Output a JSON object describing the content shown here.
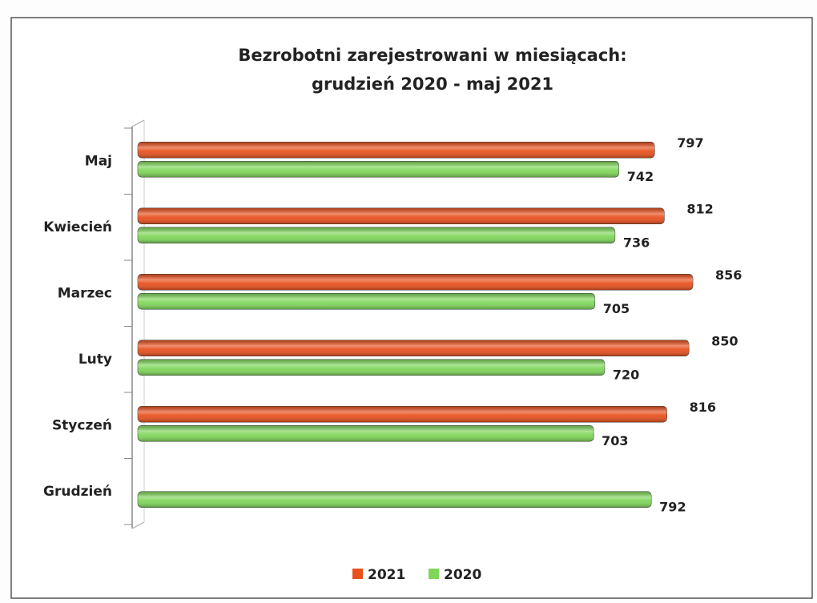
{
  "chart_data": {
    "type": "bar",
    "orientation": "horizontal",
    "title": [
      "Bezrobotni zarejestrowani w miesiącach:",
      "grudzień 2020 - maj 2021"
    ],
    "categories": [
      "Maj",
      "Kwiecień",
      "Marzec",
      "Luty",
      "Styczeń",
      "Grudzień"
    ],
    "series": [
      {
        "name": "2021",
        "color": "#e8501e",
        "values": [
          797,
          812,
          856,
          850,
          816,
          null
        ]
      },
      {
        "name": "2020",
        "color": "#7fd65a",
        "values": [
          742,
          736,
          705,
          720,
          703,
          792
        ]
      }
    ],
    "legend": "bottom"
  }
}
